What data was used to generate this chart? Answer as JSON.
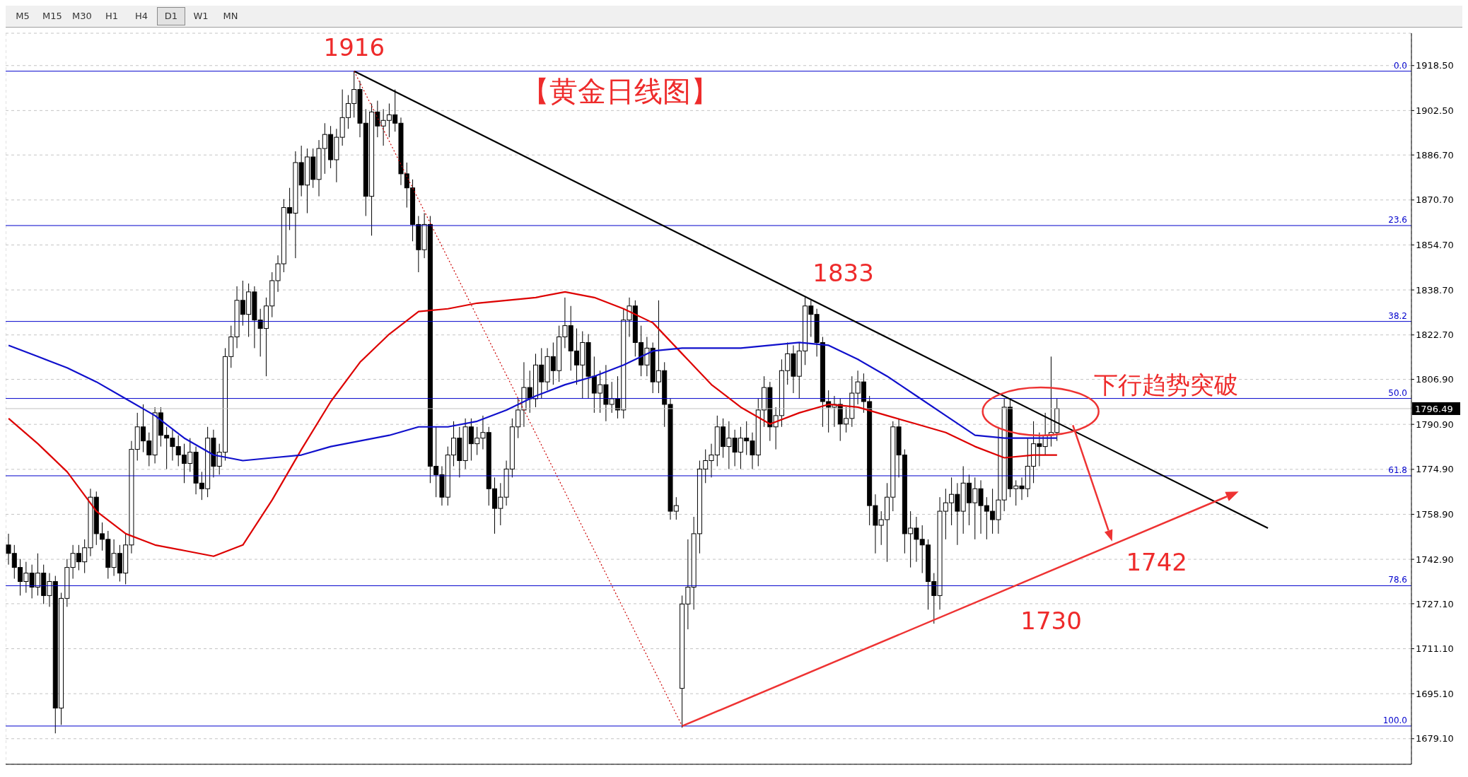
{
  "chart_data": {
    "type": "candlestick",
    "title": "【黄金日线图】",
    "categories": [
      null,
      null,
      null,
      null,
      null,
      null,
      null,
      null,
      null,
      null,
      null,
      null,
      null,
      null,
      null,
      null,
      null,
      null,
      null,
      null,
      null,
      null,
      null,
      null,
      null,
      null,
      null,
      null,
      null,
      null,
      null,
      null,
      null,
      null,
      null,
      null,
      null,
      null,
      null,
      null,
      null,
      null,
      null,
      null,
      null,
      null,
      null,
      null,
      null,
      null,
      null,
      null,
      null,
      null,
      null,
      null,
      null,
      null,
      null,
      null,
      null,
      null,
      null,
      null,
      null,
      null,
      null,
      null,
      null,
      null,
      null,
      null,
      null,
      null,
      null,
      null,
      null,
      null,
      null,
      null,
      null,
      null,
      null,
      null,
      null,
      null,
      null,
      null,
      null,
      null,
      null,
      null,
      null,
      null,
      null,
      null,
      null,
      null,
      null,
      null,
      null,
      null,
      null,
      null,
      null,
      null,
      null,
      null,
      null,
      null,
      null,
      null,
      null,
      null,
      null,
      null,
      null,
      null,
      null,
      null,
      null,
      null,
      null,
      null,
      null,
      null,
      null,
      null,
      null,
      null,
      null,
      null,
      null,
      null,
      null,
      null,
      null,
      null,
      null,
      null,
      null,
      null,
      null,
      null,
      null,
      null,
      null,
      null,
      null,
      null,
      null,
      null,
      null,
      null,
      null,
      null,
      null,
      null,
      null,
      null,
      null,
      null,
      null,
      null,
      null,
      null,
      null,
      null,
      null,
      null,
      null,
      null,
      null,
      null,
      null,
      null,
      null,
      null,
      null,
      null,
      null,
      null,
      null,
      null,
      null,
      null,
      null,
      null,
      null,
      null,
      null,
      null,
      null,
      null,
      null,
      null,
      null,
      null,
      null,
      null,
      null,
      null,
      null,
      null,
      null,
      null,
      null,
      null,
      null,
      null,
      null,
      null,
      null,
      null,
      null,
      null,
      null,
      null,
      null,
      null,
      null,
      null,
      null,
      null,
      null,
      null,
      null,
      null,
      null,
      null,
      null,
      null,
      null,
      null,
      null,
      null,
      null,
      null,
      null,
      null
    ],
    "ohlc": [
      [
        1748,
        1752,
        1741,
        1745
      ],
      [
        1745,
        1748,
        1736,
        1740
      ],
      [
        1740,
        1743,
        1730,
        1735
      ],
      [
        1735,
        1742,
        1731,
        1738
      ],
      [
        1738,
        1741,
        1729,
        1733
      ],
      [
        1733,
        1745,
        1730,
        1738
      ],
      [
        1738,
        1741,
        1727,
        1730
      ],
      [
        1730,
        1738,
        1726,
        1735
      ],
      [
        1735,
        1737,
        1681,
        1690
      ],
      [
        1690,
        1731,
        1684,
        1729
      ],
      [
        1729,
        1743,
        1726,
        1740
      ],
      [
        1740,
        1748,
        1736,
        1745
      ],
      [
        1745,
        1748,
        1739,
        1742
      ],
      [
        1742,
        1750,
        1738,
        1747
      ],
      [
        1747,
        1768,
        1744,
        1765
      ],
      [
        1765,
        1767,
        1748,
        1752
      ],
      [
        1752,
        1756,
        1746,
        1750
      ],
      [
        1750,
        1753,
        1736,
        1740
      ],
      [
        1740,
        1750,
        1737,
        1745
      ],
      [
        1745,
        1748,
        1735,
        1738
      ],
      [
        1738,
        1752,
        1734,
        1748
      ],
      [
        1748,
        1785,
        1745,
        1782
      ],
      [
        1782,
        1795,
        1778,
        1790
      ],
      [
        1790,
        1798,
        1781,
        1785
      ],
      [
        1785,
        1788,
        1776,
        1780
      ],
      [
        1780,
        1797,
        1777,
        1795
      ],
      [
        1795,
        1797,
        1783,
        1787
      ],
      [
        1787,
        1790,
        1775,
        1786
      ],
      [
        1786,
        1789,
        1778,
        1783
      ],
      [
        1783,
        1787,
        1776,
        1780
      ],
      [
        1780,
        1784,
        1770,
        1777
      ],
      [
        1777,
        1786,
        1774,
        1781
      ],
      [
        1781,
        1783,
        1766,
        1770
      ],
      [
        1770,
        1774,
        1764,
        1768
      ],
      [
        1768,
        1790,
        1765,
        1786
      ],
      [
        1786,
        1789,
        1772,
        1776
      ],
      [
        1776,
        1784,
        1773,
        1781
      ],
      [
        1781,
        1818,
        1778,
        1815
      ],
      [
        1815,
        1826,
        1811,
        1822
      ],
      [
        1822,
        1840,
        1818,
        1835
      ],
      [
        1835,
        1842,
        1826,
        1830
      ],
      [
        1830,
        1841,
        1822,
        1838
      ],
      [
        1838,
        1840,
        1818,
        1828
      ],
      [
        1828,
        1832,
        1815,
        1825
      ],
      [
        1825,
        1836,
        1808,
        1833
      ],
      [
        1833,
        1845,
        1829,
        1842
      ],
      [
        1842,
        1851,
        1838,
        1848
      ],
      [
        1848,
        1871,
        1845,
        1868
      ],
      [
        1868,
        1875,
        1860,
        1866
      ],
      [
        1866,
        1888,
        1850,
        1884
      ],
      [
        1884,
        1890,
        1872,
        1876
      ],
      [
        1876,
        1889,
        1866,
        1886
      ],
      [
        1886,
        1889,
        1875,
        1878
      ],
      [
        1878,
        1892,
        1872,
        1889
      ],
      [
        1889,
        1898,
        1880,
        1894
      ],
      [
        1894,
        1897,
        1882,
        1885
      ],
      [
        1885,
        1896,
        1877,
        1893
      ],
      [
        1893,
        1910,
        1890,
        1900
      ],
      [
        1900,
        1908,
        1896,
        1905
      ],
      [
        1905,
        1916.5,
        1900,
        1910
      ],
      [
        1910,
        1913,
        1893,
        1898
      ],
      [
        1898,
        1903,
        1865,
        1872
      ],
      [
        1872,
        1905,
        1858,
        1902
      ],
      [
        1902,
        1906,
        1893,
        1897
      ],
      [
        1897,
        1903,
        1890,
        1899
      ],
      [
        1899,
        1905,
        1893,
        1901
      ],
      [
        1901,
        1910,
        1895,
        1898
      ],
      [
        1898,
        1900,
        1876,
        1880
      ],
      [
        1880,
        1884,
        1868,
        1875
      ],
      [
        1875,
        1878,
        1856,
        1862
      ],
      [
        1862,
        1865,
        1845,
        1853
      ],
      [
        1853,
        1866,
        1850,
        1862
      ],
      [
        1862,
        1865,
        1770,
        1776
      ],
      [
        1776,
        1790,
        1765,
        1773
      ],
      [
        1773,
        1776,
        1762,
        1765
      ],
      [
        1765,
        1783,
        1762,
        1780
      ],
      [
        1780,
        1792,
        1776,
        1786
      ],
      [
        1786,
        1790,
        1772,
        1778
      ],
      [
        1778,
        1793,
        1775,
        1790
      ],
      [
        1790,
        1793,
        1778,
        1784
      ],
      [
        1784,
        1790,
        1780,
        1786
      ],
      [
        1786,
        1794,
        1782,
        1788
      ],
      [
        1788,
        1790,
        1762,
        1768
      ],
      [
        1768,
        1772,
        1752,
        1761
      ],
      [
        1761,
        1770,
        1755,
        1765
      ],
      [
        1765,
        1778,
        1762,
        1775
      ],
      [
        1775,
        1793,
        1772,
        1790
      ],
      [
        1790,
        1800,
        1786,
        1796
      ],
      [
        1796,
        1813,
        1790,
        1804
      ],
      [
        1804,
        1810,
        1795,
        1800
      ],
      [
        1800,
        1816,
        1797,
        1812
      ],
      [
        1812,
        1818,
        1800,
        1806
      ],
      [
        1806,
        1818,
        1803,
        1815
      ],
      [
        1815,
        1820,
        1805,
        1810
      ],
      [
        1810,
        1826,
        1806,
        1822
      ],
      [
        1822,
        1836,
        1818,
        1826
      ],
      [
        1826,
        1833,
        1810,
        1817
      ],
      [
        1817,
        1825,
        1805,
        1812
      ],
      [
        1812,
        1824,
        1800,
        1820
      ],
      [
        1820,
        1823,
        1800,
        1808
      ],
      [
        1808,
        1815,
        1795,
        1802
      ],
      [
        1802,
        1810,
        1795,
        1805
      ],
      [
        1805,
        1812,
        1792,
        1798
      ],
      [
        1798,
        1806,
        1795,
        1800
      ],
      [
        1800,
        1808,
        1793,
        1796
      ],
      [
        1796,
        1832,
        1793,
        1828
      ],
      [
        1828,
        1836,
        1822,
        1833
      ],
      [
        1833,
        1835,
        1815,
        1820
      ],
      [
        1820,
        1826,
        1808,
        1812
      ],
      [
        1812,
        1822,
        1808,
        1818
      ],
      [
        1818,
        1820,
        1802,
        1806
      ],
      [
        1806,
        1835,
        1802,
        1810
      ],
      [
        1810,
        1813,
        1790,
        1798
      ],
      [
        1798,
        1800,
        1757,
        1760
      ],
      [
        1760,
        1765,
        1757,
        1762
      ],
      [
        1697,
        1730,
        1683,
        1727
      ],
      [
        1727,
        1750,
        1718,
        1733
      ],
      [
        1733,
        1758,
        1725,
        1752
      ],
      [
        1752,
        1778,
        1745,
        1775
      ],
      [
        1775,
        1782,
        1770,
        1778
      ],
      [
        1778,
        1784,
        1772,
        1780
      ],
      [
        1780,
        1794,
        1776,
        1790
      ],
      [
        1790,
        1793,
        1779,
        1783
      ],
      [
        1783,
        1792,
        1775,
        1786
      ],
      [
        1786,
        1789,
        1776,
        1781
      ],
      [
        1781,
        1790,
        1775,
        1786
      ],
      [
        1786,
        1792,
        1780,
        1785
      ],
      [
        1785,
        1788,
        1775,
        1780
      ],
      [
        1780,
        1800,
        1776,
        1796
      ],
      [
        1796,
        1808,
        1790,
        1804
      ],
      [
        1804,
        1806,
        1785,
        1790
      ],
      [
        1790,
        1797,
        1782,
        1794
      ],
      [
        1794,
        1814,
        1790,
        1810
      ],
      [
        1810,
        1820,
        1805,
        1816
      ],
      [
        1816,
        1819,
        1802,
        1808
      ],
      [
        1808,
        1820,
        1800,
        1817
      ],
      [
        1817,
        1836,
        1812,
        1833
      ],
      [
        1833,
        1835,
        1822,
        1830
      ],
      [
        1830,
        1832,
        1815,
        1820
      ],
      [
        1820,
        1822,
        1790,
        1799
      ],
      [
        1799,
        1803,
        1788,
        1797
      ],
      [
        1797,
        1801,
        1790,
        1798
      ],
      [
        1798,
        1800,
        1785,
        1791
      ],
      [
        1791,
        1797,
        1788,
        1793
      ],
      [
        1793,
        1808,
        1790,
        1802
      ],
      [
        1802,
        1810,
        1798,
        1806
      ],
      [
        1806,
        1809,
        1795,
        1799
      ],
      [
        1799,
        1801,
        1755,
        1762
      ],
      [
        1762,
        1766,
        1745,
        1755
      ],
      [
        1755,
        1760,
        1748,
        1757
      ],
      [
        1757,
        1770,
        1742,
        1765
      ],
      [
        1765,
        1792,
        1760,
        1790
      ],
      [
        1790,
        1793,
        1772,
        1780
      ],
      [
        1780,
        1782,
        1745,
        1752
      ],
      [
        1752,
        1760,
        1740,
        1754
      ],
      [
        1754,
        1758,
        1742,
        1750
      ],
      [
        1750,
        1755,
        1738,
        1748
      ],
      [
        1748,
        1750,
        1725,
        1735
      ],
      [
        1735,
        1738,
        1720,
        1730
      ],
      [
        1730,
        1765,
        1725,
        1760
      ],
      [
        1760,
        1768,
        1750,
        1763
      ],
      [
        1763,
        1772,
        1755,
        1766
      ],
      [
        1766,
        1770,
        1748,
        1760
      ],
      [
        1760,
        1776,
        1752,
        1770
      ],
      [
        1770,
        1773,
        1755,
        1763
      ],
      [
        1763,
        1772,
        1750,
        1768
      ],
      [
        1768,
        1771,
        1752,
        1762
      ],
      [
        1762,
        1765,
        1750,
        1760
      ],
      [
        1760,
        1768,
        1752,
        1757
      ],
      [
        1757,
        1790,
        1752,
        1764
      ],
      [
        1764,
        1800,
        1760,
        1797
      ],
      [
        1797,
        1800,
        1765,
        1768
      ],
      [
        1768,
        1771,
        1762,
        1769
      ],
      [
        1769,
        1772,
        1764,
        1768
      ],
      [
        1768,
        1786,
        1765,
        1776
      ],
      [
        1776,
        1792,
        1770,
        1784
      ],
      [
        1784,
        1788,
        1776,
        1783
      ],
      [
        1783,
        1795,
        1780,
        1787
      ],
      [
        1787,
        1815,
        1783,
        1788
      ],
      [
        1788,
        1800,
        1785,
        1796.49
      ],
      null,
      null,
      null,
      null,
      null,
      null,
      null,
      null,
      null,
      null,
      null,
      null,
      null,
      null,
      null,
      null,
      null,
      null,
      null,
      null,
      null,
      null,
      null,
      null,
      null,
      null,
      null,
      null,
      null,
      null,
      null,
      null,
      null,
      null,
      null,
      null,
      null,
      null,
      null,
      null,
      null,
      null,
      null,
      null,
      null,
      null,
      null,
      null,
      null,
      null,
      null,
      null,
      null,
      null,
      null,
      null,
      null,
      null,
      null,
      null
    ],
    "series": [
      {
        "type": "line",
        "color": "#dd0000",
        "values": [
          1793,
          null,
          null,
          null,
          null,
          1784,
          null,
          null,
          null,
          null,
          1774,
          null,
          null,
          null,
          null,
          1760,
          null,
          null,
          null,
          null,
          1752,
          null,
          null,
          null,
          null,
          1748,
          null,
          null,
          null,
          null,
          1746,
          null,
          null,
          null,
          null,
          1744,
          null,
          null,
          null,
          null,
          1748,
          null,
          null,
          null,
          null,
          1764,
          null,
          null,
          null,
          null,
          1782,
          null,
          null,
          null,
          null,
          1799,
          null,
          null,
          null,
          null,
          1813,
          null,
          null,
          null,
          null,
          1823,
          null,
          null,
          null,
          null,
          1831,
          null,
          null,
          null,
          null,
          1832,
          null,
          null,
          null,
          null,
          1834,
          null,
          null,
          null,
          null,
          1835,
          null,
          null,
          null,
          null,
          1836,
          null,
          null,
          null,
          null,
          1838,
          null,
          null,
          null,
          null,
          1836,
          null,
          null,
          null,
          null,
          1832,
          null,
          null,
          null,
          null,
          1827,
          null,
          null,
          null,
          null,
          1816,
          null,
          null,
          null,
          null,
          1805,
          null,
          null,
          null,
          null,
          1797,
          null,
          null,
          null,
          null,
          1791,
          null,
          null,
          null,
          null,
          1795,
          null,
          null,
          null,
          null,
          1798,
          null,
          null,
          null,
          null,
          1797,
          null,
          null,
          null,
          null,
          1794,
          null,
          null,
          null,
          null,
          1791,
          null,
          null,
          null,
          null,
          1788,
          null,
          null,
          null,
          null,
          1783,
          null,
          null,
          null,
          null,
          1779,
          null,
          null,
          null,
          null,
          1780,
          null,
          null,
          null,
          1780,
          null,
          null,
          null,
          null,
          null,
          null,
          null,
          null,
          null,
          null,
          null,
          null,
          null,
          null,
          null,
          null,
          null,
          null,
          null,
          null,
          null,
          null,
          null,
          null,
          null,
          null,
          null,
          null,
          null,
          null,
          null,
          null,
          null,
          null,
          null,
          null,
          null,
          null,
          null,
          null,
          null,
          null,
          null,
          null,
          null,
          null,
          null,
          null,
          null,
          null,
          null,
          null,
          null,
          null,
          null,
          null,
          null,
          null,
          null,
          null
        ]
      },
      {
        "type": "line",
        "color": "#1010cc",
        "values": [
          1819,
          null,
          null,
          null,
          null,
          1815,
          null,
          null,
          null,
          null,
          1811,
          null,
          null,
          null,
          null,
          1806,
          null,
          null,
          null,
          null,
          1800,
          null,
          null,
          null,
          null,
          1794,
          null,
          null,
          null,
          null,
          1786,
          null,
          null,
          null,
          null,
          1780,
          null,
          null,
          null,
          null,
          1778,
          null,
          null,
          null,
          null,
          1779,
          null,
          null,
          null,
          null,
          1780,
          null,
          null,
          null,
          null,
          1783,
          null,
          null,
          null,
          null,
          1785,
          null,
          null,
          null,
          null,
          1787,
          null,
          null,
          null,
          null,
          1790,
          null,
          null,
          null,
          null,
          1790,
          null,
          null,
          null,
          null,
          1792,
          null,
          null,
          null,
          null,
          1796,
          null,
          null,
          null,
          null,
          1801,
          null,
          null,
          null,
          null,
          1805,
          null,
          null,
          null,
          null,
          1808,
          null,
          null,
          null,
          null,
          1812,
          null,
          null,
          null,
          null,
          1817,
          null,
          null,
          null,
          null,
          1818,
          null,
          null,
          null,
          null,
          1818,
          null,
          null,
          null,
          null,
          1818,
          null,
          null,
          null,
          null,
          1819,
          null,
          null,
          null,
          null,
          1820,
          null,
          null,
          null,
          null,
          1819,
          null,
          null,
          null,
          null,
          1814,
          null,
          null,
          null,
          null,
          1808,
          null,
          null,
          null,
          null,
          1801,
          null,
          null,
          null,
          null,
          1794,
          null,
          null,
          null,
          null,
          1787,
          null,
          null,
          null,
          null,
          1786,
          null,
          null,
          null,
          null,
          1786,
          null,
          null,
          null,
          1786,
          null,
          null,
          null,
          null,
          null,
          null,
          null,
          null,
          null,
          null,
          null,
          null,
          null,
          null,
          null,
          null,
          null,
          null,
          null,
          null,
          null,
          null,
          null,
          null,
          null,
          null,
          null,
          null,
          null,
          null,
          null,
          null,
          null,
          null,
          null,
          null,
          null,
          null,
          null,
          null,
          null,
          null,
          null,
          null,
          null,
          null,
          null,
          null,
          null,
          null,
          null,
          null,
          null,
          null,
          null,
          null,
          null,
          null,
          null,
          null
        ]
      },
      {
        "type": "line",
        "color": "#000000",
        "values": [
          null,
          null,
          null,
          null,
          null,
          null,
          null,
          null,
          null,
          null,
          null,
          null,
          null,
          null,
          null,
          null,
          null,
          null,
          null,
          null,
          null,
          null,
          null,
          null,
          null,
          null,
          null,
          null,
          null,
          null,
          null,
          null,
          null,
          null,
          null,
          null,
          null,
          null,
          null,
          null,
          null,
          null,
          null,
          null,
          null,
          null,
          null,
          null,
          null,
          null,
          null,
          null,
          null,
          null,
          null,
          null,
          null,
          null,
          null,
          1916.5,
          null,
          null,
          null,
          null,
          null,
          null,
          null,
          null,
          null,
          null,
          null,
          null,
          null,
          null,
          null,
          null,
          null,
          null,
          null,
          null,
          null,
          null,
          null,
          null,
          null,
          null,
          null,
          null,
          null,
          null,
          null,
          null,
          null,
          null,
          null,
          null,
          null,
          null,
          null,
          null,
          null,
          null,
          null,
          null,
          null,
          null,
          null,
          null,
          null,
          null,
          null,
          null,
          null,
          null,
          null,
          null,
          null,
          null,
          null,
          null,
          null,
          null,
          null,
          null,
          null,
          null,
          null,
          null,
          null,
          null,
          null,
          null,
          null,
          null,
          null,
          null,
          null,
          null,
          null,
          null,
          null,
          null,
          null,
          null,
          null,
          null,
          null,
          null,
          null,
          null,
          null,
          null,
          null,
          null,
          null,
          null,
          null,
          null,
          null,
          null,
          null,
          null,
          null,
          null,
          null,
          null,
          null,
          null,
          null,
          null,
          null,
          null,
          null,
          null,
          null,
          null,
          null,
          null,
          null,
          null,
          null,
          null,
          null,
          null,
          null,
          null,
          null,
          null,
          null,
          null,
          null,
          null,
          null,
          null,
          null,
          null,
          null,
          null,
          null,
          null,
          null,
          null,
          null,
          null,
          null,
          null,
          null,
          null,
          null,
          null,
          null,
          null,
          null,
          null,
          null,
          1754,
          null,
          null,
          null,
          null,
          null,
          null,
          null,
          null,
          null,
          null,
          null,
          null,
          null,
          null,
          null,
          null,
          null,
          null,
          null,
          null,
          null,
          null,
          null,
          null
        ]
      },
      {
        "type": "line",
        "color": "#cc0000",
        "line_style": "dotted",
        "values": [
          null,
          null,
          null,
          null,
          null,
          null,
          null,
          null,
          null,
          null,
          null,
          null,
          null,
          null,
          null,
          null,
          null,
          null,
          null,
          null,
          null,
          null,
          null,
          null,
          null,
          null,
          null,
          null,
          null,
          null,
          null,
          null,
          null,
          null,
          null,
          null,
          null,
          null,
          null,
          null,
          null,
          null,
          null,
          null,
          null,
          null,
          null,
          null,
          null,
          null,
          null,
          null,
          null,
          null,
          null,
          null,
          null,
          null,
          null,
          1916.5,
          null,
          null,
          null,
          null,
          null,
          null,
          null,
          null,
          null,
          null,
          null,
          null,
          null,
          null,
          null,
          null,
          null,
          null,
          null,
          null,
          null,
          null,
          null,
          null,
          null,
          null,
          null,
          null,
          null,
          null,
          null,
          null,
          null,
          null,
          null,
          null,
          null,
          null,
          null,
          null,
          null,
          null,
          null,
          null,
          null,
          null,
          null,
          null,
          null,
          null,
          null,
          null,
          null,
          null,
          null,
          1683.6,
          null,
          null,
          null,
          null,
          null,
          null,
          null,
          null,
          null,
          null,
          null,
          null,
          null,
          null,
          null,
          null,
          null,
          null,
          null,
          null,
          null,
          null,
          null,
          null,
          null,
          null,
          null,
          null,
          null,
          null,
          null,
          null,
          null,
          null,
          null,
          null,
          null,
          null,
          null,
          null,
          null,
          null,
          null,
          null,
          null,
          null,
          null,
          null,
          null,
          null,
          null,
          null,
          null,
          null,
          null,
          null,
          null,
          null,
          null,
          null,
          null,
          null,
          null,
          null,
          null,
          null,
          null,
          null,
          null,
          null,
          null,
          null,
          null,
          null,
          null,
          null,
          null,
          null,
          null,
          null,
          null,
          null,
          null,
          null,
          null,
          null,
          null,
          null,
          null,
          null,
          null,
          null,
          null,
          null,
          null,
          null,
          null,
          null,
          null,
          null,
          null,
          null,
          null,
          null,
          null,
          null,
          null,
          null,
          null,
          null,
          null,
          null,
          null,
          null,
          null,
          null,
          null,
          null,
          null,
          null,
          null,
          null,
          null,
          null
        ]
      }
    ],
    "ylim": [
      1670,
      1930
    ],
    "yticks": [
      {
        "value": 1679.1,
        "label": "1679.10"
      },
      {
        "value": 1695.1,
        "label": "1695.10"
      },
      {
        "value": 1711.1,
        "label": "1711.10"
      },
      {
        "value": 1727.1,
        "label": "1727.10"
      },
      {
        "value": 1742.9,
        "label": "1742.90"
      },
      {
        "value": 1758.9,
        "label": "1758.90"
      },
      {
        "value": 1774.9,
        "label": "1774.90"
      },
      {
        "value": 1790.9,
        "label": "1790.90"
      },
      {
        "value": 1806.9,
        "label": "1806.90"
      },
      {
        "value": 1822.7,
        "label": "1822.70"
      },
      {
        "value": 1838.7,
        "label": "1838.70"
      },
      {
        "value": 1854.7,
        "label": "1854.70"
      },
      {
        "value": 1870.7,
        "label": "1870.70"
      },
      {
        "value": 1886.7,
        "label": "1886.70"
      },
      {
        "value": 1902.5,
        "label": "1902.50"
      },
      {
        "value": 1918.5,
        "label": "1918.50"
      }
    ],
    "ref_lines": [
      {
        "axis": "y",
        "value": 1916.5,
        "color": "#0000cc"
      },
      {
        "axis": "y",
        "value": 1861.6,
        "color": "#0000cc"
      },
      {
        "axis": "y",
        "value": 1827.5,
        "color": "#0000cc"
      },
      {
        "axis": "y",
        "value": 1800.1,
        "color": "#0000cc"
      },
      {
        "axis": "y",
        "value": 1772.6,
        "color": "#0000cc"
      },
      {
        "axis": "y",
        "value": 1733.5,
        "color": "#0000cc"
      },
      {
        "axis": "y",
        "value": 1683.6,
        "color": "#0000cc"
      },
      {
        "axis": "y",
        "value": 1796.49,
        "label": "1796.49",
        "color": "#c0c0c0"
      }
    ],
    "annotations": [
      {
        "text": "1916",
        "y": 1916.5
      },
      "1833",
      "1742",
      "1730",
      "下行趋势突破",
      "0.0",
      "23.6",
      "38.2",
      "50.0",
      "61.8",
      "78.6",
      "100.0",
      "M5",
      "M15",
      "M30",
      "H1",
      "H4",
      "D1",
      "W1",
      "MN"
    ],
    "grid": true,
    "marker": "none",
    "tick_labels": "y"
  }
}
